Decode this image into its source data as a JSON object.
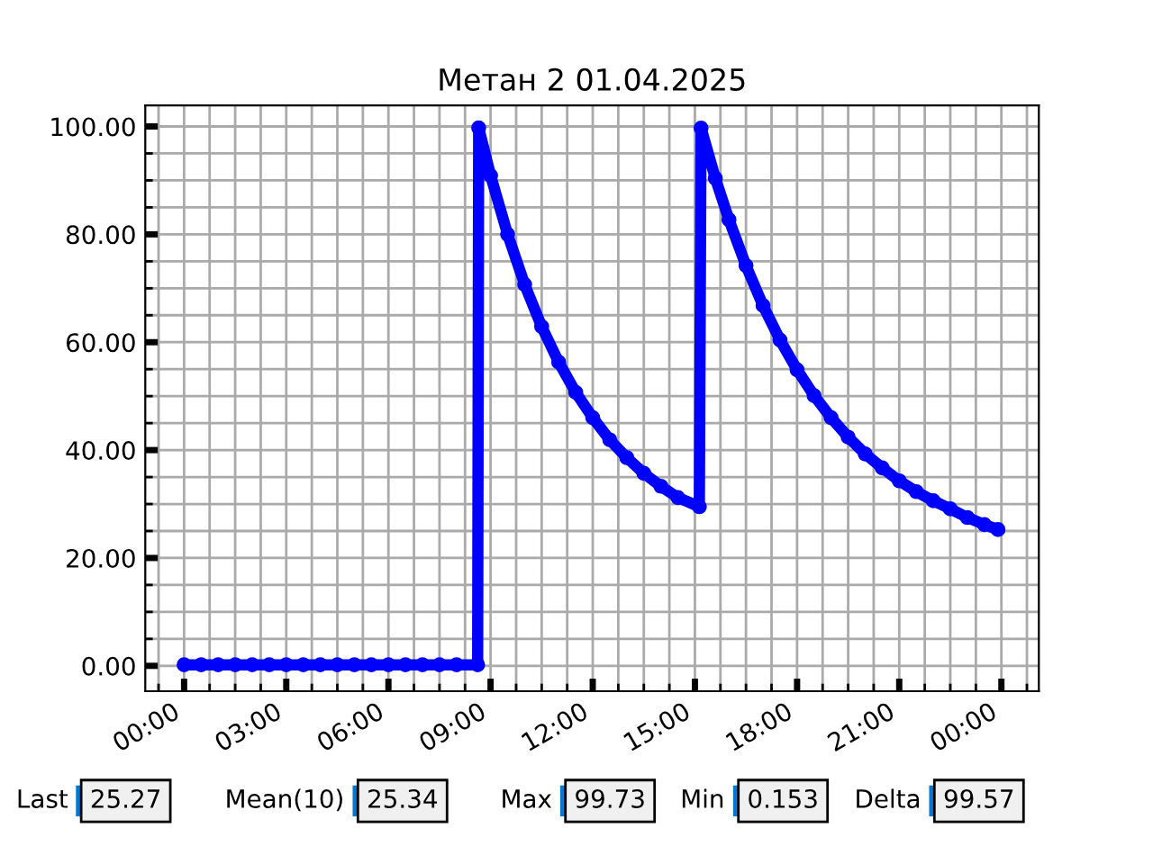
{
  "chart_data": {
    "type": "line",
    "title": "Метан 2 01.04.2025",
    "series": [
      {
        "color": "#0000ff",
        "x": [
          0,
          0.5,
          1,
          1.5,
          2,
          2.5,
          3,
          3.5,
          4,
          4.5,
          5,
          5.5,
          6,
          6.5,
          7,
          7.5,
          8,
          8.62,
          8.65,
          9.0,
          9.5,
          10.0,
          10.5,
          11.0,
          11.5,
          12.0,
          12.5,
          13.0,
          13.5,
          14.0,
          14.5,
          15.13,
          15.18,
          15.6,
          16.0,
          16.5,
          17.0,
          17.5,
          18.0,
          18.5,
          19.0,
          19.5,
          20.0,
          20.5,
          21.0,
          21.5,
          22.0,
          22.5,
          23.0,
          23.5,
          23.9
        ],
        "values": [
          0.2,
          0.2,
          0.2,
          0.2,
          0.2,
          0.2,
          0.2,
          0.2,
          0.2,
          0.2,
          0.2,
          0.2,
          0.2,
          0.2,
          0.2,
          0.2,
          0.2,
          0.2,
          99.73,
          90.9,
          80.0,
          70.7,
          62.9,
          56.3,
          50.7,
          46.0,
          41.9,
          38.6,
          35.7,
          33.3,
          31.2,
          29.5,
          99.7,
          90.4,
          82.7,
          74.2,
          66.8,
          60.4,
          54.9,
          50.1,
          46.0,
          42.4,
          39.3,
          36.7,
          34.3,
          32.3,
          30.6,
          29.1,
          27.5,
          26.2,
          25.27
        ]
      }
    ],
    "xlim": [
      -1.14,
      25.1
    ],
    "xticks": [
      {
        "value": 0,
        "label": "00:00"
      },
      {
        "value": 3,
        "label": "03:00"
      },
      {
        "value": 6,
        "label": "06:00"
      },
      {
        "value": 9,
        "label": "09:00"
      },
      {
        "value": 12,
        "label": "12:00"
      },
      {
        "value": 15,
        "label": "15:00"
      },
      {
        "value": 18,
        "label": "18:00"
      },
      {
        "value": 21,
        "label": "21:00"
      },
      {
        "value": 24,
        "label": "00:00"
      }
    ],
    "ylim": [
      -4.7,
      103.9
    ],
    "yticks": [
      {
        "value": 0,
        "label": "0.00"
      },
      {
        "value": 20,
        "label": "20.00"
      },
      {
        "value": 40,
        "label": "40.00"
      },
      {
        "value": 60,
        "label": "60.00"
      },
      {
        "value": 80,
        "label": "80.00"
      },
      {
        "value": 100,
        "label": "100.00"
      }
    ],
    "grid": true,
    "marker": "circle",
    "line_style": "solid",
    "annotations": [
      "Last",
      "25.27",
      "Mean(10)",
      "25.34",
      "Max",
      "99.73",
      "Min",
      "0.153",
      "Delta",
      "99.57"
    ]
  }
}
